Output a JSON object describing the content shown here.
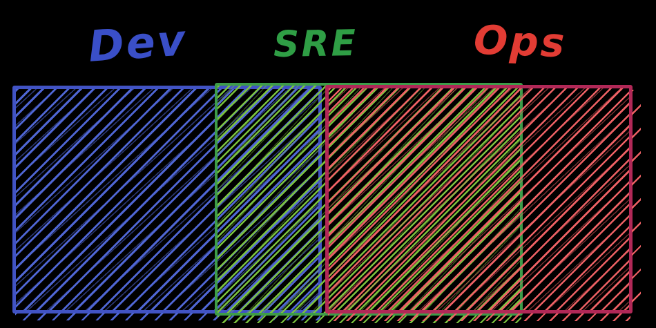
{
  "diagram": {
    "type": "overlapping-sets-sketch",
    "background_color": "#000000",
    "labels": [
      {
        "text": "Dev",
        "color": "#3a4fc8"
      },
      {
        "text": "SRE",
        "color": "#2f9e45"
      },
      {
        "text": "Ops",
        "color": "#e23c34"
      }
    ],
    "sets": [
      {
        "name": "Dev",
        "border_color": "#4153c4",
        "hatch_color": "#4f66d4",
        "hatch_direction": "diagonal-forward-slash"
      },
      {
        "name": "SRE",
        "border_color": "#3d9c49",
        "hatch_color": "#7cc43e",
        "hatch_direction": "diagonal-forward-slash"
      },
      {
        "name": "Ops",
        "border_color": "#b12857",
        "hatch_color": "#ee6164",
        "hatch_direction": "diagonal-forward-slash"
      }
    ],
    "overlaps": [
      "Dev ∩ SRE",
      "SRE ∩ Ops"
    ]
  }
}
